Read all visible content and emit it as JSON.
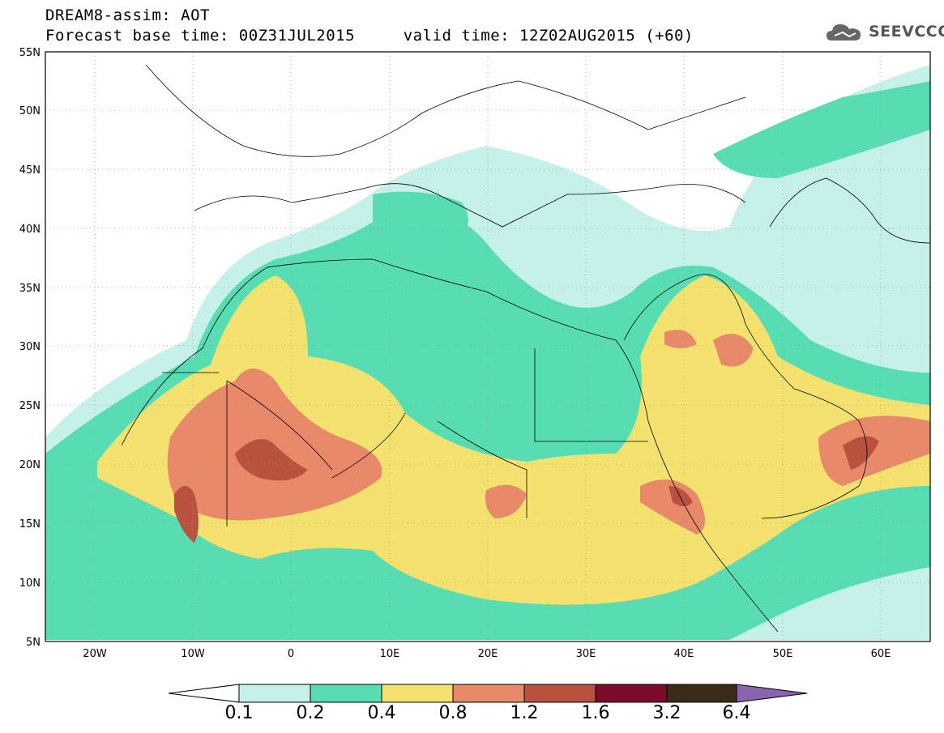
{
  "header": {
    "title": "DREAM8-assim: AOT",
    "subtitle": "Forecast base time: 00Z31JUL2015     valid time: 12Z02AUG2015 (+60)"
  },
  "logo": {
    "text": "SEEVCCC",
    "icon": "cloud-logo-icon"
  },
  "map": {
    "lon_range": [
      -25,
      65
    ],
    "lat_range": [
      5,
      55
    ],
    "lat_labels": [
      "5N",
      "10N",
      "15N",
      "20N",
      "25N",
      "30N",
      "35N",
      "40N",
      "45N",
      "50N",
      "55N"
    ],
    "lon_labels": [
      "20W",
      "10W",
      "0",
      "10E",
      "20E",
      "30E",
      "40E",
      "50E",
      "60E"
    ],
    "grid": "dotted"
  },
  "colorbar": {
    "labels": [
      "0.1",
      "0.2",
      "0.4",
      "0.8",
      "1.2",
      "1.6",
      "3.2",
      "6.4"
    ],
    "colors": [
      "#c6f0ea",
      "#57dcb4",
      "#f5e16e",
      "#e8896a",
      "#b8523f",
      "#7a0b2a",
      "#3b2a1a"
    ],
    "under_color": "#ffffff",
    "over_color": "#8b64b0"
  }
}
